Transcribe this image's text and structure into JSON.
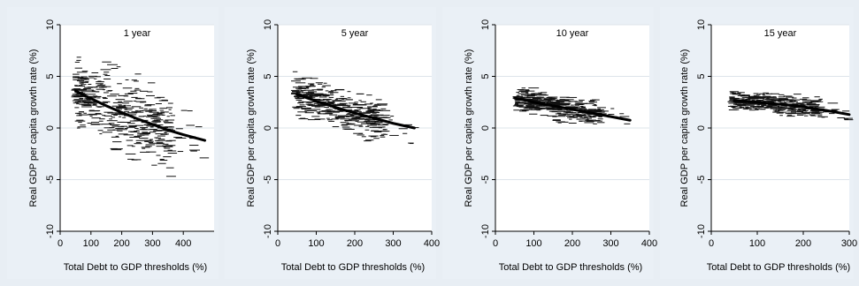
{
  "chart_data": [
    {
      "type": "scatter",
      "title": "1 year",
      "xlabel": "Total Debt to GDP thresholds (%)",
      "ylabel": "Real GDP per capita growth rate (%)",
      "xlim": [
        0,
        500
      ],
      "ylim": [
        -10,
        10
      ],
      "xticks": [
        0,
        100,
        200,
        300,
        400
      ],
      "yticks": [
        10,
        5,
        0,
        -5,
        -10
      ],
      "grid": true,
      "fit_line": {
        "x": [
          50,
          100,
          150,
          200,
          250,
          300,
          350,
          400,
          470
        ],
        "y": [
          3.6,
          2.85,
          2.15,
          1.5,
          0.9,
          0.35,
          -0.2,
          -0.65,
          -1.2
        ]
      },
      "cloud": {
        "x_range": [
          50,
          470
        ],
        "y_min": -6.8,
        "y_max": 6.9,
        "spread": 2.3,
        "n_points": 460
      }
    },
    {
      "type": "scatter",
      "title": "5 year",
      "xlabel": "Total Debt to GDP thresholds (%)",
      "ylabel": "Real GDP per capita growth rate (%)",
      "xlim": [
        0,
        400
      ],
      "ylim": [
        -10,
        10
      ],
      "xticks": [
        0,
        100,
        200,
        300,
        400
      ],
      "yticks": [
        10,
        5,
        0,
        -5,
        -10
      ],
      "grid": true,
      "fit_line": {
        "x": [
          50,
          100,
          150,
          200,
          250,
          300,
          355
        ],
        "y": [
          3.25,
          2.6,
          2.0,
          1.45,
          0.95,
          0.45,
          0.0
        ]
      },
      "cloud": {
        "x_range": [
          45,
          360
        ],
        "y_min": -1.5,
        "y_max": 6.0,
        "spread": 1.3,
        "n_points": 420
      }
    },
    {
      "type": "scatter",
      "title": "10 year",
      "xlabel": "Total Debt to GDP thresholds (%)",
      "ylabel": "Real GDP per capita growth rate (%)",
      "xlim": [
        0,
        400
      ],
      "ylim": [
        -10,
        10
      ],
      "xticks": [
        0,
        100,
        200,
        300,
        400
      ],
      "yticks": [
        10,
        5,
        0,
        -5,
        -10
      ],
      "grid": true,
      "fit_line": {
        "x": [
          50,
          100,
          150,
          200,
          250,
          300,
          350
        ],
        "y": [
          2.9,
          2.5,
          2.15,
          1.8,
          1.45,
          1.1,
          0.75
        ]
      },
      "cloud": {
        "x_range": [
          55,
          350
        ],
        "y_min": 0.4,
        "y_max": 5.8,
        "spread": 0.8,
        "n_points": 400
      }
    },
    {
      "type": "scatter",
      "title": "15 year",
      "xlabel": "Total Debt to GDP thresholds (%)",
      "ylabel": "Real GDP per capita growth rate (%)",
      "xlim": [
        0,
        300
      ],
      "ylim": [
        -10,
        10
      ],
      "xticks": [
        0,
        100,
        200,
        300
      ],
      "yticks": [
        10,
        5,
        0,
        -5,
        -10
      ],
      "grid": true,
      "fit_line": {
        "x": [
          50,
          100,
          150,
          200,
          250,
          300
        ],
        "y": [
          2.65,
          2.5,
          2.3,
          2.05,
          1.7,
          1.3
        ]
      },
      "cloud": {
        "x_range": [
          45,
          300
        ],
        "y_min": 0.8,
        "y_max": 5.3,
        "spread": 0.7,
        "n_points": 380
      }
    }
  ]
}
